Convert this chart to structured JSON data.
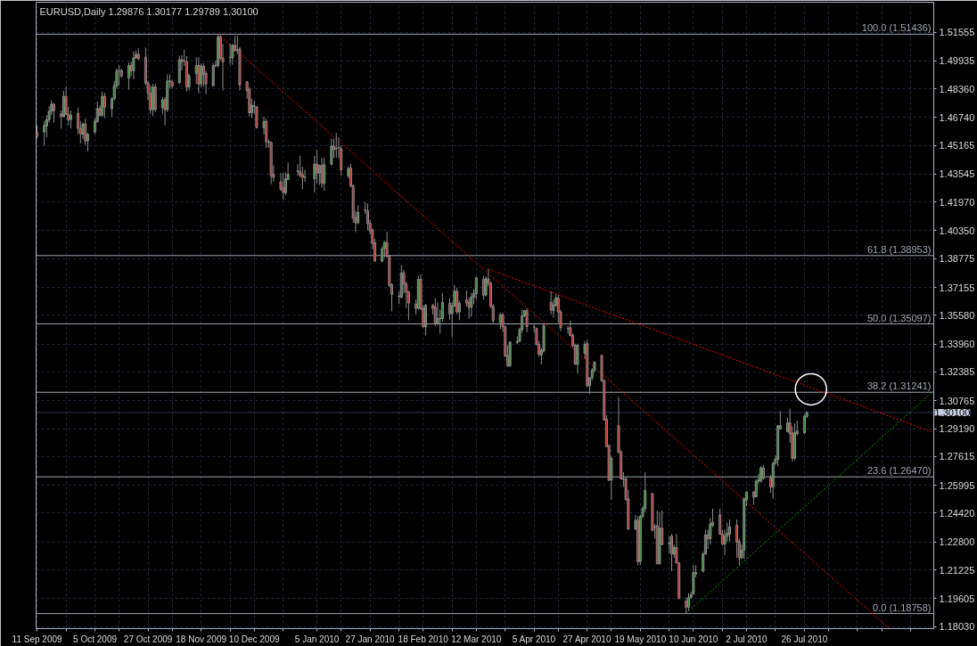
{
  "chart_data": {
    "type": "candlestick",
    "title": "EURUSD,Daily  1.29876 1.30177 1.29789 1.30100",
    "x": [
      "2009-09-11",
      "2009-09-14",
      "2009-09-15",
      "2009-09-16",
      "2009-09-17",
      "2009-09-18",
      "2009-09-21",
      "2009-09-22",
      "2009-09-23",
      "2009-09-24",
      "2009-09-25",
      "2009-09-28",
      "2009-09-29",
      "2009-09-30",
      "2009-10-01",
      "2009-10-02",
      "2009-10-05",
      "2009-10-06",
      "2009-10-07",
      "2009-10-08",
      "2009-10-09",
      "2009-10-12",
      "2009-10-13",
      "2009-10-14",
      "2009-10-15",
      "2009-10-16",
      "2009-10-19",
      "2009-10-20",
      "2009-10-21",
      "2009-10-22",
      "2009-10-23",
      "2009-10-26",
      "2009-10-27",
      "2009-10-28",
      "2009-10-29",
      "2009-10-30",
      "2009-11-02",
      "2009-11-03",
      "2009-11-04",
      "2009-11-05",
      "2009-11-06",
      "2009-11-09",
      "2009-11-10",
      "2009-11-11",
      "2009-11-12",
      "2009-11-13",
      "2009-11-16",
      "2009-11-17",
      "2009-11-18",
      "2009-11-19",
      "2009-11-20",
      "2009-11-23",
      "2009-11-24",
      "2009-11-25",
      "2009-11-26",
      "2009-11-27",
      "2009-11-30",
      "2009-12-01",
      "2009-12-02",
      "2009-12-03",
      "2009-12-04",
      "2009-12-07",
      "2009-12-08",
      "2009-12-09",
      "2009-12-10",
      "2009-12-11",
      "2009-12-14",
      "2009-12-15",
      "2009-12-16",
      "2009-12-17",
      "2009-12-18",
      "2009-12-21",
      "2009-12-22",
      "2009-12-23",
      "2009-12-24",
      "2009-12-28",
      "2009-12-29",
      "2009-12-30",
      "2009-12-31",
      "2010-01-04",
      "2010-01-05",
      "2010-01-06",
      "2010-01-07",
      "2010-01-08",
      "2010-01-11",
      "2010-01-12",
      "2010-01-13",
      "2010-01-14",
      "2010-01-15",
      "2010-01-18",
      "2010-01-19",
      "2010-01-20",
      "2010-01-21",
      "2010-01-22",
      "2010-01-25",
      "2010-01-26",
      "2010-01-27",
      "2010-01-28",
      "2010-01-29",
      "2010-02-01",
      "2010-02-02",
      "2010-02-03",
      "2010-02-04",
      "2010-02-05",
      "2010-02-08",
      "2010-02-09",
      "2010-02-10",
      "2010-02-11",
      "2010-02-12",
      "2010-02-15",
      "2010-02-16",
      "2010-02-17",
      "2010-02-18",
      "2010-02-19",
      "2010-02-22",
      "2010-02-23",
      "2010-02-24",
      "2010-02-25",
      "2010-02-26",
      "2010-03-01",
      "2010-03-02",
      "2010-03-03",
      "2010-03-04",
      "2010-03-05",
      "2010-03-08",
      "2010-03-09",
      "2010-03-10",
      "2010-03-11",
      "2010-03-12",
      "2010-03-15",
      "2010-03-16",
      "2010-03-17",
      "2010-03-18",
      "2010-03-19",
      "2010-03-22",
      "2010-03-23",
      "2010-03-24",
      "2010-03-25",
      "2010-03-26",
      "2010-03-29",
      "2010-03-30",
      "2010-03-31",
      "2010-04-01",
      "2010-04-02",
      "2010-04-05",
      "2010-04-06",
      "2010-04-07",
      "2010-04-08",
      "2010-04-09",
      "2010-04-12",
      "2010-04-13",
      "2010-04-14",
      "2010-04-15",
      "2010-04-16",
      "2010-04-19",
      "2010-04-20",
      "2010-04-21",
      "2010-04-22",
      "2010-04-23",
      "2010-04-26",
      "2010-04-27",
      "2010-04-28",
      "2010-04-29",
      "2010-04-30",
      "2010-05-03",
      "2010-05-04",
      "2010-05-05",
      "2010-05-06",
      "2010-05-07",
      "2010-05-10",
      "2010-05-11",
      "2010-05-12",
      "2010-05-13",
      "2010-05-14",
      "2010-05-17",
      "2010-05-18",
      "2010-05-19",
      "2010-05-20",
      "2010-05-21",
      "2010-05-24",
      "2010-05-25",
      "2010-05-26",
      "2010-05-27",
      "2010-05-28",
      "2010-05-31",
      "2010-06-01",
      "2010-06-02",
      "2010-06-03",
      "2010-06-04",
      "2010-06-07",
      "2010-06-08",
      "2010-06-09",
      "2010-06-10",
      "2010-06-11",
      "2010-06-14",
      "2010-06-15",
      "2010-06-16",
      "2010-06-17",
      "2010-06-18",
      "2010-06-21",
      "2010-06-22",
      "2010-06-23",
      "2010-06-24",
      "2010-06-25",
      "2010-06-28",
      "2010-06-29",
      "2010-06-30",
      "2010-07-01",
      "2010-07-02",
      "2010-07-05",
      "2010-07-06",
      "2010-07-07",
      "2010-07-08",
      "2010-07-09",
      "2010-07-12",
      "2010-07-13",
      "2010-07-14",
      "2010-07-15",
      "2010-07-16",
      "2010-07-19",
      "2010-07-20",
      "2010-07-21",
      "2010-07-22",
      "2010-07-23",
      "2010-07-26",
      "2010-07-27"
    ],
    "ohlc": [
      [
        1.4587,
        1.4629,
        1.4554,
        1.457
      ],
      [
        1.4592,
        1.4654,
        1.4515,
        1.4629
      ],
      [
        1.4626,
        1.4687,
        1.4562,
        1.4662
      ],
      [
        1.4662,
        1.4738,
        1.4646,
        1.4708
      ],
      [
        1.4708,
        1.4771,
        1.4687,
        1.4749
      ],
      [
        1.4749,
        1.4754,
        1.4646,
        1.4713
      ],
      [
        1.4694,
        1.4713,
        1.4612,
        1.4679
      ],
      [
        1.4679,
        1.4825,
        1.4676,
        1.4793
      ],
      [
        1.4793,
        1.4846,
        1.4687,
        1.4693
      ],
      [
        1.4693,
        1.4733,
        1.4629,
        1.4662
      ],
      [
        1.4662,
        1.4713,
        1.4612,
        1.4687
      ],
      [
        1.4696,
        1.4729,
        1.4579,
        1.4612
      ],
      [
        1.4612,
        1.4654,
        1.4529,
        1.4582
      ],
      [
        1.4579,
        1.4646,
        1.4554,
        1.4637
      ],
      [
        1.4637,
        1.4666,
        1.452,
        1.4542
      ],
      [
        1.4542,
        1.4587,
        1.4482,
        1.4579
      ],
      [
        1.4592,
        1.4671,
        1.4579,
        1.4654
      ],
      [
        1.4649,
        1.4763,
        1.4646,
        1.4724
      ],
      [
        1.4724,
        1.4743,
        1.4679,
        1.4687
      ],
      [
        1.4687,
        1.4821,
        1.4679,
        1.4793
      ],
      [
        1.4793,
        1.4813,
        1.4671,
        1.4733
      ],
      [
        1.4724,
        1.4788,
        1.4679,
        1.4779
      ],
      [
        1.4779,
        1.488,
        1.4771,
        1.4853
      ],
      [
        1.4853,
        1.495,
        1.4838,
        1.4938
      ],
      [
        1.4938,
        1.4967,
        1.4853,
        1.4936
      ],
      [
        1.4938,
        1.495,
        1.4897,
        1.4908
      ],
      [
        1.4897,
        1.4984,
        1.483,
        1.4967
      ],
      [
        1.4967,
        1.4989,
        1.4905,
        1.4938
      ],
      [
        1.4938,
        1.5047,
        1.4888,
        1.501
      ],
      [
        1.501,
        1.5051,
        1.5005,
        1.503
      ],
      [
        1.503,
        1.5064,
        1.4997,
        1.5005
      ],
      [
        1.5014,
        1.5067,
        1.4855,
        1.4868
      ],
      [
        1.4868,
        1.488,
        1.4771,
        1.481
      ],
      [
        1.481,
        1.4855,
        1.4696,
        1.4718
      ],
      [
        1.4718,
        1.4863,
        1.4682,
        1.4846
      ],
      [
        1.4846,
        1.4863,
        1.4704,
        1.4718
      ],
      [
        1.4729,
        1.4788,
        1.4696,
        1.4774
      ],
      [
        1.4774,
        1.4788,
        1.4629,
        1.4718
      ],
      [
        1.4718,
        1.4917,
        1.4704,
        1.488
      ],
      [
        1.488,
        1.4918,
        1.4838,
        1.4877
      ],
      [
        1.4875,
        1.4888,
        1.4838,
        1.485
      ],
      [
        1.4871,
        1.5022,
        1.4863,
        1.5
      ],
      [
        1.5,
        1.5025,
        1.4938,
        1.4989
      ],
      [
        1.4994,
        1.5056,
        1.4964,
        1.4992
      ],
      [
        1.4989,
        1.502,
        1.4821,
        1.4846
      ],
      [
        1.4846,
        1.4922,
        1.4826,
        1.491
      ],
      [
        1.4922,
        1.5014,
        1.4863,
        1.4967
      ],
      [
        1.4967,
        1.5014,
        1.481,
        1.4863
      ],
      [
        1.4863,
        1.498,
        1.4846,
        1.4964
      ],
      [
        1.4964,
        1.498,
        1.4846,
        1.4917
      ],
      [
        1.4922,
        1.4938,
        1.4805,
        1.4863
      ],
      [
        1.4853,
        1.498,
        1.485,
        1.4967
      ],
      [
        1.4967,
        1.4994,
        1.4955,
        1.4969
      ],
      [
        1.4967,
        1.5144,
        1.4955,
        1.5128
      ],
      [
        1.5128,
        1.514,
        1.4997,
        1.5009
      ],
      [
        1.5009,
        1.5089,
        1.4826,
        1.4989
      ],
      [
        1.5012,
        1.5089,
        1.4972,
        1.5014
      ],
      [
        1.501,
        1.5089,
        1.4972,
        1.5081
      ],
      [
        1.5081,
        1.5135,
        1.5047,
        1.5051
      ],
      [
        1.5056,
        1.5135,
        1.503,
        1.5054
      ],
      [
        1.5061,
        1.5072,
        1.4826,
        1.4858
      ],
      [
        1.4875,
        1.488,
        1.4779,
        1.4825
      ],
      [
        1.4833,
        1.4846,
        1.4679,
        1.4701
      ],
      [
        1.4701,
        1.4779,
        1.4671,
        1.4743
      ],
      [
        1.474,
        1.4771,
        1.4696,
        1.4736
      ],
      [
        1.4734,
        1.4738,
        1.4612,
        1.4617
      ],
      [
        1.4617,
        1.4679,
        1.4579,
        1.4652
      ],
      [
        1.4652,
        1.4666,
        1.4503,
        1.4537
      ],
      [
        1.4537,
        1.4549,
        1.4503,
        1.4534
      ],
      [
        1.4534,
        1.4534,
        1.4298,
        1.4345
      ],
      [
        1.4353,
        1.4403,
        1.4311,
        1.4336
      ],
      [
        1.4311,
        1.4361,
        1.4261,
        1.4269
      ],
      [
        1.4278,
        1.4361,
        1.4214,
        1.4252
      ],
      [
        1.4249,
        1.4365,
        1.4236,
        1.4328
      ],
      [
        1.4324,
        1.442,
        1.4324,
        1.4353
      ],
      [
        1.4371,
        1.4411,
        1.4345,
        1.4373
      ],
      [
        1.437,
        1.4458,
        1.4336,
        1.435
      ],
      [
        1.4353,
        1.4395,
        1.4269,
        1.4336
      ],
      [
        1.4336,
        1.4378,
        1.4311,
        1.4338
      ],
      [
        1.4328,
        1.4458,
        1.4252,
        1.4411
      ],
      [
        1.4411,
        1.4492,
        1.4303,
        1.4361
      ],
      [
        1.4361,
        1.4408,
        1.4294,
        1.4403
      ],
      [
        1.4403,
        1.4445,
        1.4278,
        1.4303
      ],
      [
        1.4303,
        1.4448,
        1.4261,
        1.4408
      ],
      [
        1.4411,
        1.4554,
        1.4403,
        1.4512
      ],
      [
        1.4512,
        1.4554,
        1.4445,
        1.4492
      ],
      [
        1.45,
        1.4587,
        1.4448,
        1.4498
      ],
      [
        1.4503,
        1.4562,
        1.4445,
        1.4505
      ],
      [
        1.4498,
        1.4515,
        1.4345,
        1.4378
      ],
      [
        1.4345,
        1.44,
        1.433,
        1.4386
      ],
      [
        1.4388,
        1.4413,
        1.428,
        1.4288
      ],
      [
        1.4288,
        1.4297,
        1.408,
        1.4105
      ],
      [
        1.4109,
        1.4147,
        1.4027,
        1.408
      ],
      [
        1.408,
        1.418,
        1.4072,
        1.4139
      ],
      [
        1.415,
        1.4197,
        1.413,
        1.4152
      ],
      [
        1.4147,
        1.4189,
        1.4039,
        1.4077
      ],
      [
        1.4077,
        1.4097,
        1.4014,
        1.4034
      ],
      [
        1.4039,
        1.4047,
        1.393,
        1.3964
      ],
      [
        1.3967,
        1.3989,
        1.3861,
        1.3864
      ],
      [
        1.3864,
        1.3947,
        1.3856,
        1.3934
      ],
      [
        1.3934,
        1.3977,
        1.3884,
        1.3969
      ],
      [
        1.3969,
        1.403,
        1.3884,
        1.3892
      ],
      [
        1.3892,
        1.3897,
        1.3717,
        1.3727
      ],
      [
        1.373,
        1.3739,
        1.3581,
        1.3677
      ],
      [
        1.3666,
        1.3692,
        1.3622,
        1.3664
      ],
      [
        1.3659,
        1.3842,
        1.3656,
        1.3797
      ],
      [
        1.3797,
        1.3814,
        1.3681,
        1.3734
      ],
      [
        1.3734,
        1.3747,
        1.3598,
        1.3689
      ],
      [
        1.3689,
        1.3697,
        1.3531,
        1.3627
      ],
      [
        1.3622,
        1.3647,
        1.3564,
        1.3598
      ],
      [
        1.3598,
        1.3781,
        1.3589,
        1.3761
      ],
      [
        1.3761,
        1.3789,
        1.3589,
        1.3594
      ],
      [
        1.3598,
        1.3614,
        1.3489,
        1.3494
      ],
      [
        1.3494,
        1.3622,
        1.3444,
        1.3614
      ],
      [
        1.3614,
        1.3622,
        1.3564,
        1.3598
      ],
      [
        1.3606,
        1.3656,
        1.3498,
        1.3511
      ],
      [
        1.3511,
        1.3631,
        1.3501,
        1.3539
      ],
      [
        1.3541,
        1.3589,
        1.3456,
        1.3539
      ],
      [
        1.3539,
        1.3684,
        1.3523,
        1.3631
      ],
      [
        1.3626,
        1.3656,
        1.3531,
        1.3567
      ],
      [
        1.3567,
        1.3631,
        1.3434,
        1.3611
      ],
      [
        1.3611,
        1.373,
        1.3606,
        1.3694
      ],
      [
        1.3694,
        1.3714,
        1.3564,
        1.3577
      ],
      [
        1.3577,
        1.3639,
        1.3531,
        1.3626
      ],
      [
        1.3644,
        1.3697,
        1.3606,
        1.3627
      ],
      [
        1.3631,
        1.3656,
        1.3539,
        1.3604
      ],
      [
        1.3604,
        1.3684,
        1.3548,
        1.3661
      ],
      [
        1.3661,
        1.3706,
        1.3622,
        1.3681
      ],
      [
        1.3681,
        1.3777,
        1.3647,
        1.3769
      ],
      [
        1.3761,
        1.3781,
        1.3647,
        1.3672
      ],
      [
        1.3672,
        1.3777,
        1.3664,
        1.3764
      ],
      [
        1.3764,
        1.3819,
        1.3722,
        1.3739
      ],
      [
        1.3739,
        1.3747,
        1.3598,
        1.3609
      ],
      [
        1.3609,
        1.3622,
        1.3514,
        1.3528
      ],
      [
        1.3518,
        1.3572,
        1.3481,
        1.3561
      ],
      [
        1.3561,
        1.3572,
        1.3464,
        1.3494
      ],
      [
        1.3494,
        1.3498,
        1.3323,
        1.3328
      ],
      [
        1.3331,
        1.3389,
        1.3268,
        1.3273
      ],
      [
        1.3273,
        1.3414,
        1.3268,
        1.3406
      ],
      [
        1.3406,
        1.344,
        1.3395,
        1.3412
      ],
      [
        1.3412,
        1.3489,
        1.3406,
        1.3478
      ],
      [
        1.3478,
        1.3589,
        1.346,
        1.3556
      ],
      [
        1.3556,
        1.3589,
        1.3548,
        1.3584
      ],
      [
        1.3584,
        1.3598,
        1.3464,
        1.3494
      ],
      [
        1.3493,
        1.3506,
        1.3464,
        1.3491
      ],
      [
        1.3484,
        1.3489,
        1.3389,
        1.3394
      ],
      [
        1.3394,
        1.3414,
        1.3323,
        1.3339
      ],
      [
        1.3334,
        1.3373,
        1.3281,
        1.3361
      ],
      [
        1.3356,
        1.3514,
        1.3348,
        1.3501
      ],
      [
        1.3631,
        1.3694,
        1.3564,
        1.3589
      ],
      [
        1.3584,
        1.3647,
        1.3544,
        1.3617
      ],
      [
        1.3614,
        1.3677,
        1.3606,
        1.3656
      ],
      [
        1.3656,
        1.3672,
        1.3518,
        1.3577
      ],
      [
        1.3577,
        1.3589,
        1.3468,
        1.3489
      ],
      [
        1.3486,
        1.3498,
        1.3456,
        1.3484
      ],
      [
        1.3489,
        1.3528,
        1.3439,
        1.3444
      ],
      [
        1.3444,
        1.3456,
        1.3378,
        1.3389
      ],
      [
        1.3389,
        1.3398,
        1.3278,
        1.3284
      ],
      [
        1.3281,
        1.3398,
        1.3231,
        1.3389
      ],
      [
        1.3344,
        1.3414,
        1.3314,
        1.3394
      ],
      [
        1.3398,
        1.342,
        1.3156,
        1.3161
      ],
      [
        1.3161,
        1.3206,
        1.3114,
        1.3206
      ],
      [
        1.3206,
        1.326,
        1.319,
        1.3248
      ],
      [
        1.3248,
        1.33,
        1.3235,
        1.3294
      ],
      [
        1.3331,
        1.3339,
        1.3184,
        1.3189
      ],
      [
        1.3189,
        1.3197,
        1.2964,
        1.2968
      ],
      [
        1.2973,
        1.2995,
        1.2815,
        1.2818
      ],
      [
        1.2821,
        1.2831,
        1.2623,
        1.2628
      ],
      [
        1.2628,
        1.2765,
        1.2518,
        1.2752
      ],
      [
        1.2935,
        1.3098,
        1.2781,
        1.2785
      ],
      [
        1.2785,
        1.2798,
        1.2632,
        1.2635
      ],
      [
        1.2637,
        1.2673,
        1.259,
        1.2633
      ],
      [
        1.2635,
        1.2648,
        1.2515,
        1.2518
      ],
      [
        1.2523,
        1.2573,
        1.2349,
        1.2352
      ],
      [
        1.2352,
        1.2432,
        1.2349,
        1.2402
      ],
      [
        1.2402,
        1.2424,
        1.2149,
        1.2169
      ],
      [
        1.2169,
        1.2432,
        1.2149,
        1.2424
      ],
      [
        1.2424,
        1.2482,
        1.2415,
        1.2468
      ],
      [
        1.2468,
        1.2673,
        1.2449,
        1.257
      ],
      [
        1.2553,
        1.2557,
        1.234,
        1.2345
      ],
      [
        1.2362,
        1.2382,
        1.2299,
        1.2365
      ],
      [
        1.2372,
        1.2457,
        1.2152,
        1.2157
      ],
      [
        1.2157,
        1.2449,
        1.2152,
        1.2357
      ],
      [
        1.2357,
        1.2457,
        1.2262,
        1.2265
      ],
      [
        1.227,
        1.2312,
        1.2215,
        1.2274
      ],
      [
        1.2312,
        1.2324,
        1.2115,
        1.2212
      ],
      [
        1.2212,
        1.2265,
        1.219,
        1.2249
      ],
      [
        1.2249,
        1.2324,
        1.2157,
        1.2162
      ],
      [
        1.2162,
        1.2165,
        1.1957,
        1.1962
      ],
      [
        1.1946,
        1.1966,
        1.1876,
        1.1912
      ],
      [
        1.1912,
        1.1991,
        1.1891,
        1.1966
      ],
      [
        1.1966,
        1.1999,
        1.196,
        1.1982
      ],
      [
        1.1986,
        1.2149,
        1.1982,
        1.2107
      ],
      [
        1.2099,
        1.2149,
        1.2082,
        1.2107
      ],
      [
        1.2115,
        1.2224,
        1.2107,
        1.2212
      ],
      [
        1.2212,
        1.2349,
        1.2207,
        1.232
      ],
      [
        1.232,
        1.2349,
        1.224,
        1.2299
      ],
      [
        1.2299,
        1.2415,
        1.2265,
        1.2382
      ],
      [
        1.2374,
        1.2468,
        1.2365,
        1.239
      ],
      [
        1.2432,
        1.2468,
        1.232,
        1.2324
      ],
      [
        1.2324,
        1.2349,
        1.226,
        1.2269
      ],
      [
        1.2269,
        1.2349,
        1.2207,
        1.2312
      ],
      [
        1.2312,
        1.239,
        1.2282,
        1.2329
      ],
      [
        1.2324,
        1.2407,
        1.2282,
        1.2365
      ],
      [
        1.2374,
        1.2407,
        1.219,
        1.2279
      ],
      [
        1.2282,
        1.2299,
        1.2149,
        1.219
      ],
      [
        1.219,
        1.2265,
        1.2185,
        1.2232
      ],
      [
        1.2232,
        1.2532,
        1.2185,
        1.2523
      ],
      [
        1.2515,
        1.2565,
        1.2482,
        1.2562
      ],
      [
        1.2562,
        1.2565,
        1.249,
        1.2532
      ],
      [
        1.2535,
        1.2632,
        1.2532,
        1.2623
      ],
      [
        1.2623,
        1.2665,
        1.2607,
        1.2632
      ],
      [
        1.2623,
        1.2707,
        1.2615,
        1.2698
      ],
      [
        1.2698,
        1.2715,
        1.2632,
        1.264
      ],
      [
        1.264,
        1.2657,
        1.2557,
        1.259
      ],
      [
        1.259,
        1.2732,
        1.2523,
        1.2723
      ],
      [
        1.2723,
        1.2768,
        1.2715,
        1.2748
      ],
      [
        1.2745,
        1.294,
        1.2707,
        1.2935
      ],
      [
        1.2918,
        1.3018,
        1.2915,
        1.2936
      ],
      [
        1.2901,
        1.2981,
        1.2898,
        1.2951
      ],
      [
        1.2951,
        1.3031,
        1.284,
        1.289
      ],
      [
        1.2895,
        1.2931,
        1.2732,
        1.2752
      ],
      [
        1.2752,
        1.2948,
        1.274,
        1.2895
      ],
      [
        1.289,
        1.2964,
        1.2881,
        1.2906
      ],
      [
        1.2895,
        1.2998,
        1.289,
        1.299
      ],
      [
        1.29876,
        1.30177,
        1.29789,
        1.301
      ]
    ],
    "series": [
      {
        "type": "line",
        "x": [
          "2009-11-25",
          "2010-08-30"
        ],
        "values": [
          1.5144,
          1.1794
        ],
        "color": "#ff0000"
      },
      {
        "type": "line",
        "x": [
          "2010-03-17",
          "2010-09-17"
        ],
        "values": [
          1.3819,
          1.29
        ],
        "color": "#ff0000"
      },
      {
        "type": "line",
        "x": [
          "2010-06-07",
          "2010-09-17"
        ],
        "values": [
          1.1876,
          1.3126
        ],
        "color": "#00a000"
      },
      {
        "type": "scatter",
        "marker": "circle",
        "x": [
          "2010-07-28T16:48"
        ],
        "values": [
          1.3141
        ],
        "color": "#ffffff"
      }
    ],
    "line_style": "dotted",
    "ref_lines": [
      {
        "axis": "y",
        "value": 1.51436,
        "label": "100.0 (1.51436)",
        "color": "#9ea4ae"
      },
      {
        "axis": "y",
        "value": 1.38953,
        "label": "61.8 (1.38953)",
        "color": "#9ea4ae"
      },
      {
        "axis": "y",
        "value": 1.35097,
        "label": "50.0 (1.35097)",
        "color": "#9ea4ae"
      },
      {
        "axis": "y",
        "value": 1.31241,
        "label": "38.2 (1.31241)",
        "color": "#9ea4ae"
      },
      {
        "axis": "y",
        "value": 1.2647,
        "label": "23.6 (1.26470)",
        "color": "#9ea4ae"
      },
      {
        "axis": "y",
        "value": 1.18758,
        "label": "0.0 (1.18758)",
        "color": "#9ea4ae"
      },
      {
        "axis": "y",
        "value": 1.301,
        "color": "#2c3648"
      }
    ],
    "annotations": [
      "1.30100"
    ],
    "xlim": [
      "2009-09-10T14:24",
      "2010-09-17T14:24"
    ],
    "ylim": [
      1.1791,
      1.5324
    ],
    "xticks": [
      {
        "value": "2009-09-11",
        "label": "11 Sep 2009"
      },
      {
        "value": "2009-09-23",
        "label": null
      },
      {
        "value": "2009-10-05",
        "label": "5 Oct 2009"
      },
      {
        "value": "2009-10-15",
        "label": null
      },
      {
        "value": "2009-10-27",
        "label": "27 Oct 2009"
      },
      {
        "value": "2009-11-06",
        "label": null
      },
      {
        "value": "2009-11-18",
        "label": "18 Nov 2009"
      },
      {
        "value": "2009-11-30",
        "label": null
      },
      {
        "value": "2009-12-10",
        "label": "10 Dec 2009"
      },
      {
        "value": "2009-12-22",
        "label": null
      },
      {
        "value": "2010-01-05",
        "label": "5 Jan 2010"
      },
      {
        "value": "2010-01-15",
        "label": null
      },
      {
        "value": "2010-01-27",
        "label": "27 Jan 2010"
      },
      {
        "value": "2010-02-08",
        "label": null
      },
      {
        "value": "2010-02-18",
        "label": "18 Feb 2010"
      },
      {
        "value": "2010-03-02",
        "label": null
      },
      {
        "value": "2010-03-12",
        "label": "12 Mar 2010"
      },
      {
        "value": "2010-03-24",
        "label": null
      },
      {
        "value": "2010-04-05",
        "label": "5 Apr 2010"
      },
      {
        "value": "2010-04-15",
        "label": null
      },
      {
        "value": "2010-04-27",
        "label": "27 Apr 2010"
      },
      {
        "value": "2010-05-07",
        "label": null
      },
      {
        "value": "2010-05-19",
        "label": "19 May 2010"
      },
      {
        "value": "2010-05-31",
        "label": null
      },
      {
        "value": "2010-06-10",
        "label": "10 Jun 2010"
      },
      {
        "value": "2010-06-22",
        "label": null
      },
      {
        "value": "2010-07-02",
        "label": "2 Jul 2010"
      },
      {
        "value": "2010-07-14",
        "label": null
      },
      {
        "value": "2010-07-26",
        "label": "26 Jul 2010"
      },
      {
        "value": "2010-08-05",
        "label": null
      },
      {
        "value": "2010-08-17",
        "label": null
      },
      {
        "value": "2010-08-27",
        "label": null
      },
      {
        "value": "2010-09-08",
        "label": null
      }
    ],
    "yticks": [
      {
        "value": 1.1803,
        "label": "1.18030"
      },
      1.19605,
      1.21225,
      {
        "value": 1.228,
        "label": "1.22800"
      },
      {
        "value": 1.2442,
        "label": "1.24420"
      },
      1.25995,
      1.27615,
      {
        "value": 1.2919,
        "label": "1.29190"
      },
      1.30765,
      1.32385,
      {
        "value": 1.3396,
        "label": "1.33960"
      },
      {
        "value": 1.3558,
        "label": "1.35580"
      },
      1.37155,
      1.38775,
      {
        "value": 1.4035,
        "label": "1.40350"
      },
      {
        "value": 1.4197,
        "label": "1.41970"
      },
      1.43545,
      1.45165,
      {
        "value": 1.4674,
        "label": "1.46740"
      },
      {
        "value": 1.4836,
        "label": "1.48360"
      },
      1.49935,
      1.51555
    ],
    "grid": true
  }
}
